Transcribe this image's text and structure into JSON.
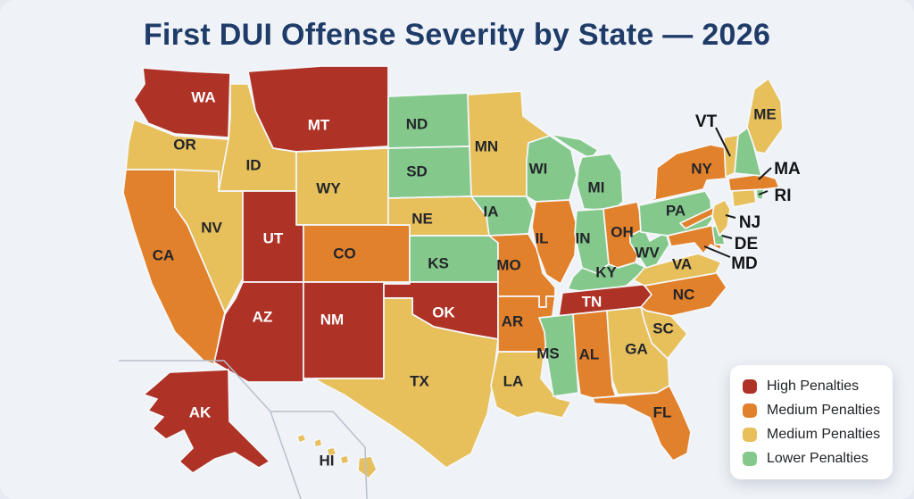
{
  "title": "First DUI Offense Severity by State — 2026",
  "colors": {
    "high": "#AF3227",
    "medium_orange": "#E2812B",
    "medium_yellow": "#E7C05C",
    "lower": "#84C98B"
  },
  "ui": {
    "background": "#EFF3F8",
    "title_color": "#1F3B68",
    "label_dark": "#23252B",
    "label_light": "#FFFFFF",
    "external_label_color": "#111317"
  },
  "legend": {
    "items": [
      {
        "label": "High Penalties",
        "level": "high"
      },
      {
        "label": "Medium Penalties",
        "level": "medium_orange"
      },
      {
        "label": "Medium Penalties",
        "level": "medium_yellow"
      },
      {
        "label": "Lower Penalties",
        "level": "lower"
      }
    ]
  },
  "map": {
    "states": [
      {
        "abbr": "WA",
        "label": "WA",
        "level": "high"
      },
      {
        "abbr": "OR",
        "label": "OR",
        "level": "medium_yellow"
      },
      {
        "abbr": "CA",
        "label": "CA",
        "level": "medium_orange"
      },
      {
        "abbr": "NV",
        "label": "NV",
        "level": "medium_yellow"
      },
      {
        "abbr": "ID",
        "label": "ID",
        "level": "medium_yellow"
      },
      {
        "abbr": "MT",
        "label": "MT",
        "level": "high"
      },
      {
        "abbr": "WY",
        "label": "WY",
        "level": "medium_yellow"
      },
      {
        "abbr": "UT",
        "label": "UT",
        "level": "high"
      },
      {
        "abbr": "CO",
        "label": "CO",
        "level": "medium_orange"
      },
      {
        "abbr": "AZ",
        "label": "AZ",
        "level": "high"
      },
      {
        "abbr": "NM",
        "label": "NM",
        "level": "high"
      },
      {
        "abbr": "ND",
        "label": "ND",
        "level": "lower"
      },
      {
        "abbr": "SD",
        "label": "SD",
        "level": "lower"
      },
      {
        "abbr": "NE",
        "label": "NE",
        "level": "medium_yellow"
      },
      {
        "abbr": "KS",
        "label": "KS",
        "level": "lower"
      },
      {
        "abbr": "OK",
        "label": "OK",
        "level": "high"
      },
      {
        "abbr": "TX",
        "label": "TX",
        "level": "medium_yellow"
      },
      {
        "abbr": "MN",
        "label": "MN",
        "level": "medium_yellow"
      },
      {
        "abbr": "IA",
        "label": "IA",
        "level": "lower"
      },
      {
        "abbr": "MO",
        "label": "MO",
        "level": "medium_orange"
      },
      {
        "abbr": "AR",
        "label": "AR",
        "level": "medium_orange"
      },
      {
        "abbr": "LA",
        "label": "LA",
        "level": "medium_yellow"
      },
      {
        "abbr": "WI",
        "label": "WI",
        "level": "lower"
      },
      {
        "abbr": "IL",
        "label": "IL",
        "level": "medium_orange"
      },
      {
        "abbr": "MI",
        "label": "MI",
        "level": "lower"
      },
      {
        "abbr": "IN",
        "label": "IN",
        "level": "lower"
      },
      {
        "abbr": "OH",
        "label": "OH",
        "level": "medium_orange"
      },
      {
        "abbr": "KY",
        "label": "KY",
        "level": "lower"
      },
      {
        "abbr": "TN",
        "label": "TN",
        "level": "high"
      },
      {
        "abbr": "MS",
        "label": "MS",
        "level": "lower"
      },
      {
        "abbr": "AL",
        "label": "AL",
        "level": "medium_orange"
      },
      {
        "abbr": "GA",
        "label": "GA",
        "level": "medium_yellow"
      },
      {
        "abbr": "FL",
        "label": "FL",
        "level": "medium_orange"
      },
      {
        "abbr": "SC",
        "label": "SC",
        "level": "medium_yellow"
      },
      {
        "abbr": "NC",
        "label": "NC",
        "level": "medium_orange"
      },
      {
        "abbr": "VA",
        "label": "VA",
        "level": "medium_yellow"
      },
      {
        "abbr": "WV",
        "label": "WV",
        "level": "lower"
      },
      {
        "abbr": "PA",
        "label": "PA",
        "level": "lower"
      },
      {
        "abbr": "NY",
        "label": "NY",
        "level": "medium_orange"
      },
      {
        "abbr": "MD",
        "label": "MD",
        "level": "medium_orange"
      },
      {
        "abbr": "DE",
        "label": "DE",
        "level": "lower"
      },
      {
        "abbr": "NJ",
        "label": "NJ",
        "level": "medium_yellow"
      },
      {
        "abbr": "CT",
        "label": "",
        "level": "medium_yellow"
      },
      {
        "abbr": "RI",
        "label": "RI",
        "level": "lower"
      },
      {
        "abbr": "MA",
        "label": "MA",
        "level": "medium_orange"
      },
      {
        "abbr": "VT",
        "label": "VT",
        "level": "medium_yellow"
      },
      {
        "abbr": "NH",
        "label": "",
        "level": "lower"
      },
      {
        "abbr": "ME",
        "label": "ME",
        "level": "medium_yellow"
      },
      {
        "abbr": "AK",
        "label": "AK",
        "level": "high"
      },
      {
        "abbr": "HI",
        "label": "HI",
        "level": "medium_yellow"
      }
    ]
  }
}
